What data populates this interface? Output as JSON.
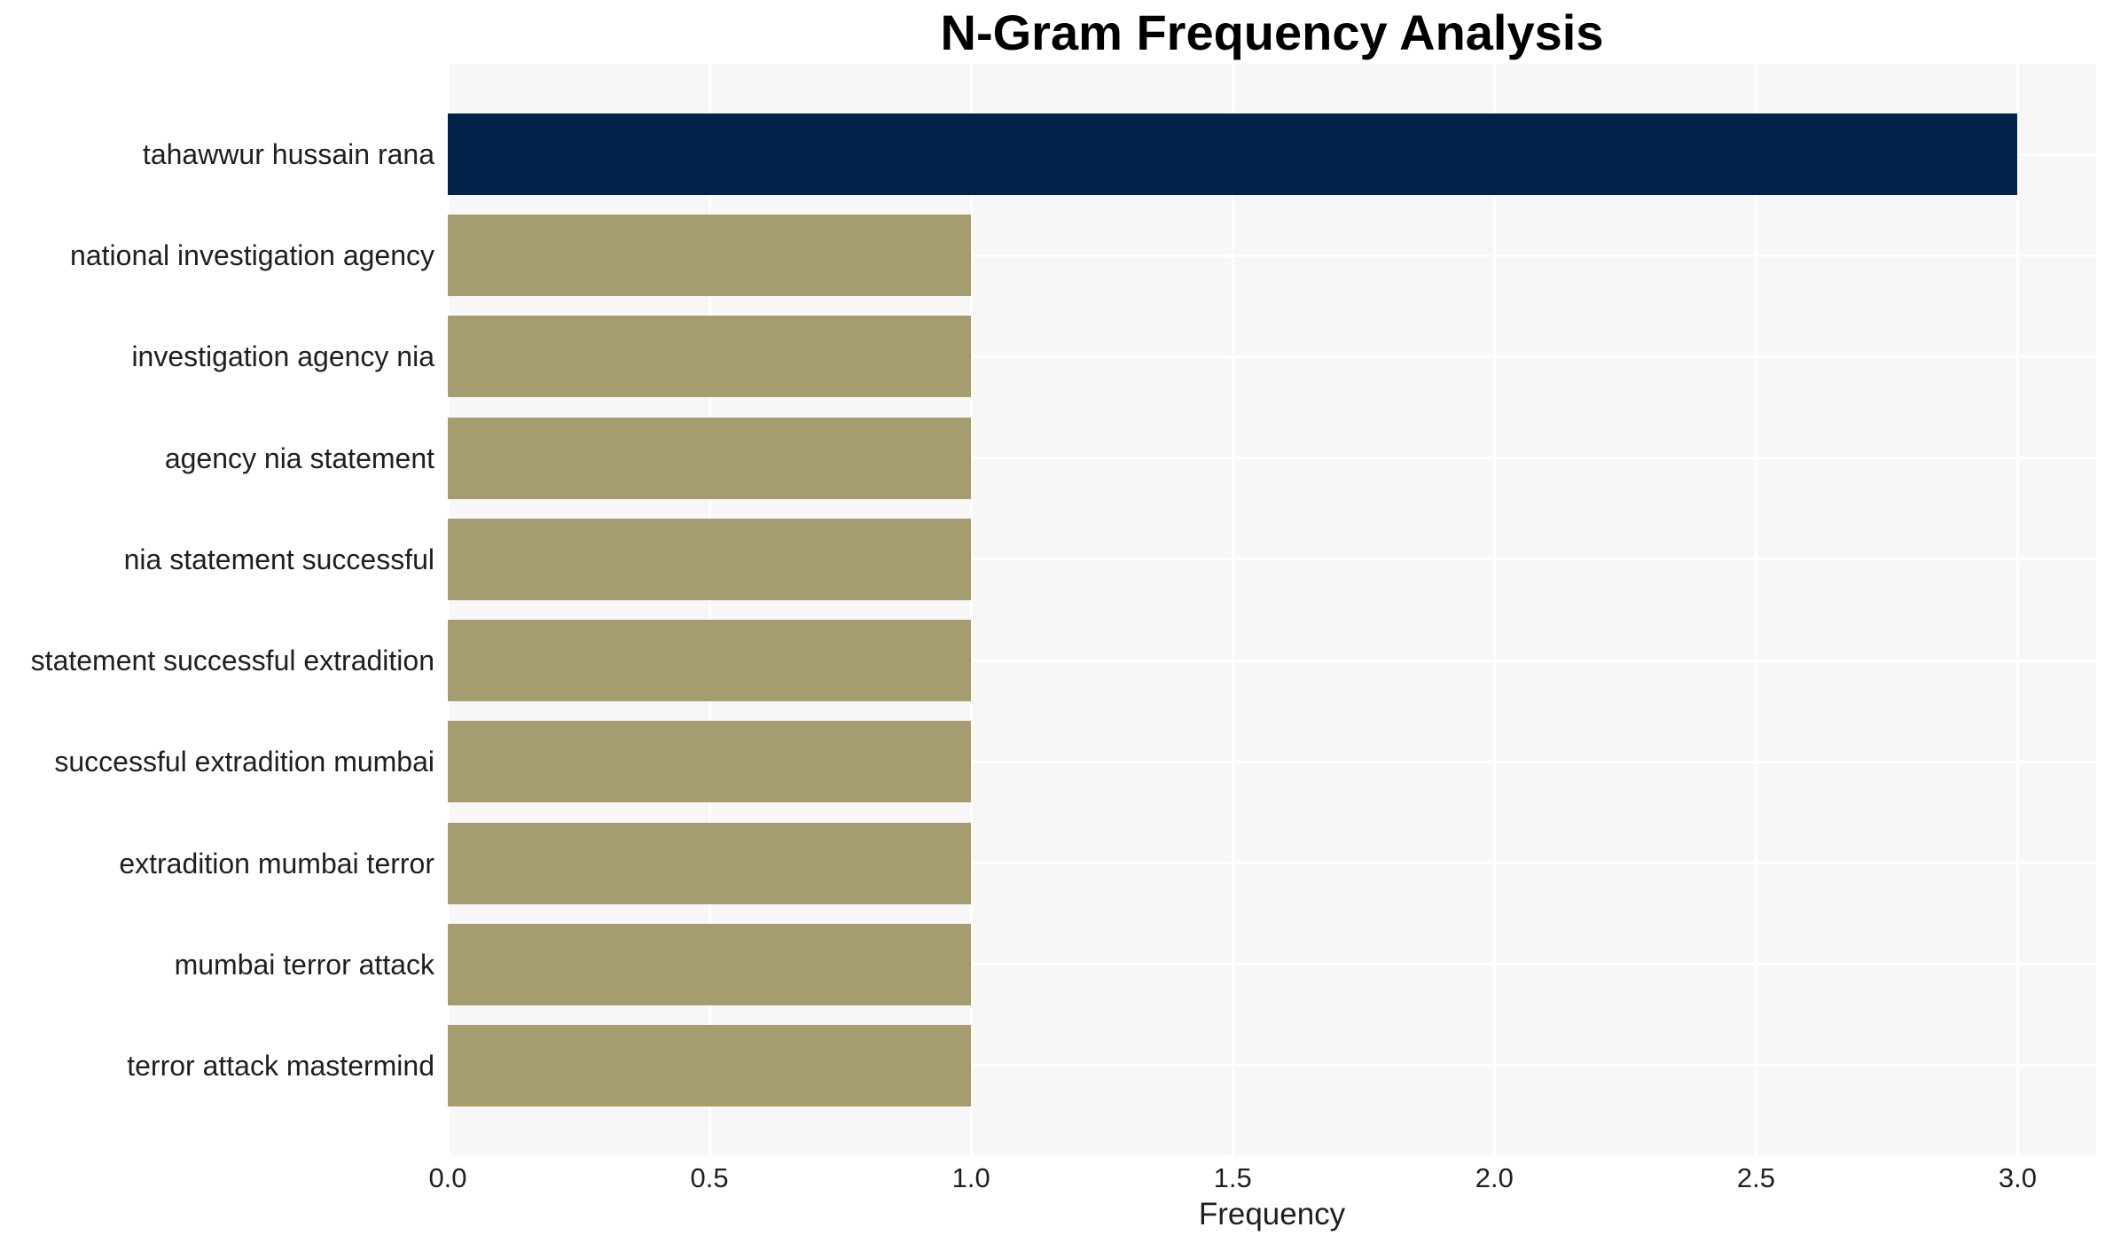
{
  "chart_data": {
    "type": "bar",
    "orientation": "horizontal",
    "title": "N-Gram Frequency Analysis",
    "xlabel": "Frequency",
    "ylabel": "",
    "categories": [
      "tahawwur hussain rana",
      "national investigation agency",
      "investigation agency nia",
      "agency nia statement",
      "nia statement successful",
      "statement successful extradition",
      "successful extradition mumbai",
      "extradition mumbai terror",
      "mumbai terror attack",
      "terror attack mastermind"
    ],
    "values": [
      3,
      1,
      1,
      1,
      1,
      1,
      1,
      1,
      1,
      1
    ],
    "xlim": [
      0,
      3.15
    ],
    "xticks": [
      0.0,
      0.5,
      1.0,
      1.5,
      2.0,
      2.5,
      3.0
    ],
    "xtick_labels": [
      "0.0",
      "0.5",
      "1.0",
      "1.5",
      "2.0",
      "2.5",
      "3.0"
    ],
    "grid": true,
    "legend": false,
    "colors": {
      "bar_highlight": "#022349",
      "bar_default": "#a59c70",
      "highlight_index": 0,
      "plot_background": "#f7f7f7",
      "grid_color": "#ffffff",
      "text_color": "#1f1f1f",
      "title_color": "#000000"
    }
  }
}
